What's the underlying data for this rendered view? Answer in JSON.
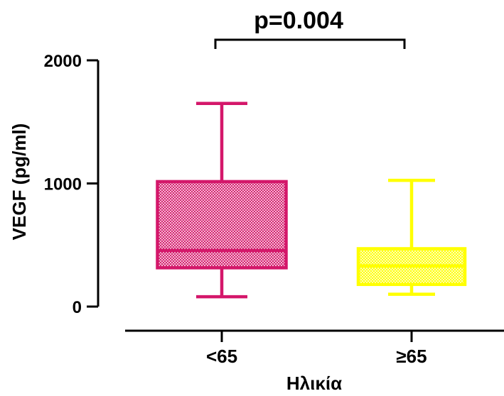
{
  "chart_data": {
    "type": "box",
    "title": "",
    "ylabel": "VEGF (pg/ml)",
    "xlabel": "Ηλικία",
    "ylim": [
      0,
      2000
    ],
    "yticks": [
      0,
      1000,
      2000
    ],
    "grid": false,
    "annotation": "p=0.004",
    "categories": [
      "<65",
      "≥65"
    ],
    "boxes": [
      {
        "label": "<65",
        "whisker_low": 80,
        "q1": 315,
        "median": 455,
        "q3": 1015,
        "whisker_high": 1650,
        "color": "#d4176a"
      },
      {
        "label": "≥65",
        "whisker_low": 100,
        "q1": 180,
        "median": 330,
        "q3": 470,
        "whisker_high": 1025,
        "color": "#ffff00"
      }
    ]
  }
}
